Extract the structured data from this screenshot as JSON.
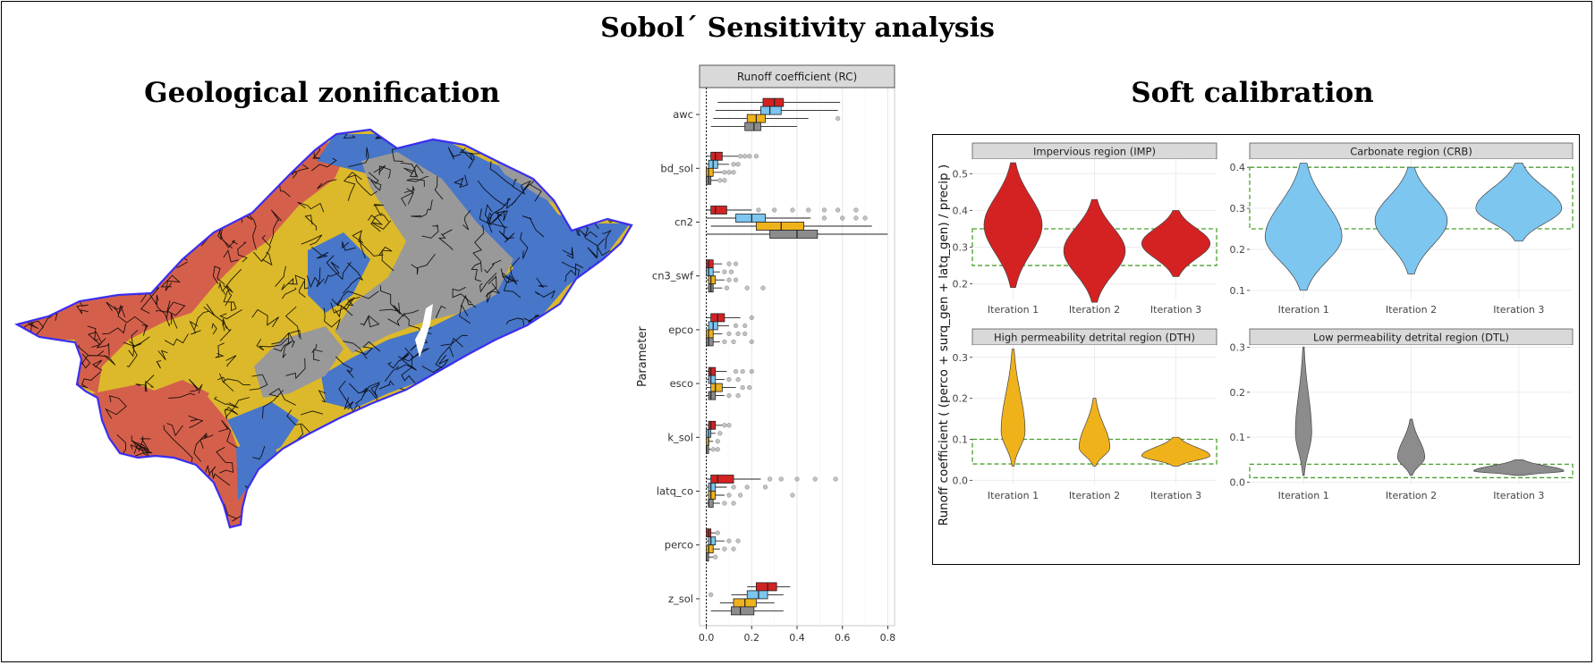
{
  "titles": {
    "main": "Sobol´ Sensitivity analysis",
    "geology": "Geological zonification",
    "soft": "Soft calibration"
  },
  "colors": {
    "impervious": "#d42222",
    "carbonate": "#7cc6f0",
    "high_perm": "#efb21b",
    "low_perm": "#8c8c8c",
    "map_red": "#d4604c",
    "map_yellow": "#dcb92a",
    "map_blue": "#4876c8",
    "map_gray": "#999999",
    "map_outline": "#3a2ef0",
    "target_band": "#4aa02c"
  },
  "map_icon": "watershed-zonification-map",
  "chart_data": [
    {
      "type": "boxplot",
      "panel_title": "Runoff coefficient (RC)",
      "ylabel": "Parameter",
      "xlim": [
        -0.03,
        0.83
      ],
      "x_ticks": [
        "0.0",
        "0.2",
        "0.4",
        "0.6",
        "0.8"
      ],
      "x_tick_values": [
        0,
        0.2,
        0.4,
        0.6,
        0.8
      ],
      "zero_line": true,
      "groups_order": [
        "impervious",
        "carbonate",
        "high_perm",
        "low_perm"
      ],
      "parameters": [
        {
          "name": "awc",
          "boxes": [
            [
              0.05,
              0.25,
              0.3,
              0.34,
              0.59
            ],
            [
              0.04,
              0.24,
              0.28,
              0.33,
              0.58
            ],
            [
              0.03,
              0.18,
              0.22,
              0.26,
              0.45
            ],
            [
              0.02,
              0.17,
              0.21,
              0.24,
              0.4
            ]
          ],
          "outliers": [
            [],
            [],
            [
              0.58
            ],
            []
          ]
        },
        {
          "name": "bd_sol",
          "boxes": [
            [
              0,
              0.02,
              0.04,
              0.07,
              0.14
            ],
            [
              0,
              0.01,
              0.03,
              0.05,
              0.1
            ],
            [
              0,
              0.0,
              0.01,
              0.03,
              0.07
            ],
            [
              0,
              0.0,
              0.01,
              0.02,
              0.05
            ]
          ],
          "outliers": [
            [
              0.15,
              0.17,
              0.19,
              0.22
            ],
            [
              0.12,
              0.14
            ],
            [
              0.08,
              0.1,
              0.12
            ],
            [
              0.06,
              0.08
            ]
          ]
        },
        {
          "name": "cn2",
          "boxes": [
            [
              0,
              0.02,
              0.04,
              0.09,
              0.2
            ],
            [
              0,
              0.13,
              0.2,
              0.26,
              0.46
            ],
            [
              0.02,
              0.22,
              0.33,
              0.43,
              0.73
            ],
            [
              0,
              0.28,
              0.4,
              0.49,
              0.8
            ]
          ],
          "outliers": [
            [
              0.23,
              0.3,
              0.38,
              0.45,
              0.52,
              0.58,
              0.66
            ],
            [
              0.52,
              0.6,
              0.66,
              0.7
            ],
            [],
            []
          ]
        },
        {
          "name": "cn3_swf",
          "boxes": [
            [
              0,
              0.0,
              0.01,
              0.03,
              0.07
            ],
            [
              0,
              0.0,
              0.01,
              0.03,
              0.06
            ],
            [
              0,
              0.01,
              0.02,
              0.04,
              0.08
            ],
            [
              0,
              0.01,
              0.02,
              0.03,
              0.07
            ]
          ],
          "outliers": [
            [
              0.1,
              0.13
            ],
            [
              0.08,
              0.11
            ],
            [
              0.1,
              0.13
            ],
            [
              0.09,
              0.18,
              0.25
            ]
          ]
        },
        {
          "name": "epco",
          "boxes": [
            [
              0,
              0.02,
              0.05,
              0.08,
              0.15
            ],
            [
              0,
              0.01,
              0.03,
              0.05,
              0.1
            ],
            [
              0,
              0.0,
              0.01,
              0.03,
              0.07
            ],
            [
              0,
              0.0,
              0.01,
              0.03,
              0.06
            ]
          ],
          "outliers": [
            [
              0.2
            ],
            [
              0.13,
              0.17
            ],
            [
              0.1,
              0.14,
              0.17
            ],
            [
              0.08,
              0.12,
              0.2
            ]
          ]
        },
        {
          "name": "esco",
          "boxes": [
            [
              0,
              0.01,
              0.02,
              0.04,
              0.09
            ],
            [
              0,
              0.01,
              0.02,
              0.04,
              0.08
            ],
            [
              0,
              0.02,
              0.04,
              0.07,
              0.13
            ],
            [
              0,
              0.01,
              0.02,
              0.04,
              0.08
            ]
          ],
          "outliers": [
            [
              0.13,
              0.16,
              0.2
            ],
            [
              0.1,
              0.14
            ],
            [
              0.16,
              0.19
            ],
            [
              0.1,
              0.14
            ]
          ]
        },
        {
          "name": "k_sol",
          "boxes": [
            [
              0,
              0.01,
              0.02,
              0.04,
              0.07
            ],
            [
              0,
              0.0,
              0.01,
              0.02,
              0.04
            ],
            [
              0,
              0.0,
              0.01,
              0.01,
              0.03
            ],
            [
              0,
              0.0,
              0.0,
              0.01,
              0.02
            ]
          ],
          "outliers": [
            [
              0.08,
              0.1
            ],
            [
              0.06
            ],
            [
              0.05
            ],
            [
              0.03,
              0.05
            ]
          ]
        },
        {
          "name": "latq_co",
          "boxes": [
            [
              0,
              0.02,
              0.05,
              0.12,
              0.24
            ],
            [
              0,
              0.01,
              0.02,
              0.04,
              0.09
            ],
            [
              0,
              0.01,
              0.02,
              0.04,
              0.08
            ],
            [
              0,
              0.01,
              0.01,
              0.03,
              0.06
            ]
          ],
          "outliers": [
            [
              0.28,
              0.33,
              0.4,
              0.48,
              0.57
            ],
            [
              0.12,
              0.18,
              0.26
            ],
            [
              0.1,
              0.15,
              0.38
            ],
            [
              0.08,
              0.12
            ]
          ]
        },
        {
          "name": "perco",
          "boxes": [
            [
              0,
              0.0,
              0.01,
              0.02,
              0.04
            ],
            [
              0,
              0.01,
              0.02,
              0.04,
              0.08
            ],
            [
              0,
              0.0,
              0.01,
              0.03,
              0.06
            ],
            [
              0,
              0.0,
              0.0,
              0.01,
              0.03
            ]
          ],
          "outliers": [
            [
              0.05
            ],
            [
              0.1,
              0.14
            ],
            [
              0.08,
              0.12
            ],
            [
              0.04
            ]
          ]
        },
        {
          "name": "z_sol",
          "boxes": [
            [
              0.18,
              0.22,
              0.27,
              0.31,
              0.37
            ],
            [
              0.11,
              0.18,
              0.23,
              0.27,
              0.34
            ],
            [
              0.06,
              0.12,
              0.17,
              0.22,
              0.3
            ],
            [
              0.02,
              0.11,
              0.15,
              0.21,
              0.34
            ]
          ],
          "outliers": [
            [],
            [
              0.02
            ],
            [],
            []
          ]
        }
      ]
    },
    {
      "type": "violin",
      "ylabel": "Runoff coefficient ( (perco + surq_gen + latq_gen) / precip )",
      "x_categories": [
        "Iteration 1",
        "Iteration 2",
        "Iteration 3"
      ],
      "panels": [
        {
          "title": "Impervious region (IMP)",
          "group": "impervious",
          "ylim": [
            0.16,
            0.54
          ],
          "y_ticks": [
            "0.2",
            "0.3",
            "0.4",
            "0.5"
          ],
          "y_tick_values": [
            0.2,
            0.3,
            0.4,
            0.5
          ],
          "target": [
            0.25,
            0.35
          ],
          "violins": [
            {
              "min": 0.19,
              "max": 0.53,
              "mode": 0.36,
              "width": 0.85
            },
            {
              "min": 0.15,
              "max": 0.43,
              "mode": 0.29,
              "width": 0.9
            },
            {
              "min": 0.22,
              "max": 0.4,
              "mode": 0.31,
              "width": 1.0
            }
          ]
        },
        {
          "title": "Carbonate region (CRB)",
          "group": "carbonate",
          "ylim": [
            0.08,
            0.42
          ],
          "y_ticks": [
            "0.1",
            "0.2",
            "0.3",
            "0.4"
          ],
          "y_tick_values": [
            0.1,
            0.2,
            0.3,
            0.4
          ],
          "target": [
            0.25,
            0.4
          ],
          "violins": [
            {
              "min": 0.1,
              "max": 0.41,
              "mode": 0.23,
              "width": 0.85
            },
            {
              "min": 0.14,
              "max": 0.4,
              "mode": 0.27,
              "width": 0.8
            },
            {
              "min": 0.22,
              "max": 0.41,
              "mode": 0.3,
              "width": 0.95
            }
          ]
        },
        {
          "title": "High permeability detrital region (DTH)",
          "group": "high_perm",
          "ylim": [
            -0.01,
            0.33
          ],
          "y_ticks": [
            "0.0",
            "0.1",
            "0.2",
            "0.3"
          ],
          "y_tick_values": [
            0,
            0.1,
            0.2,
            0.3
          ],
          "target": [
            0.04,
            0.1
          ],
          "violins": [
            {
              "min": 0.035,
              "max": 0.32,
              "mode": 0.12,
              "width": 0.35
            },
            {
              "min": 0.035,
              "max": 0.2,
              "mode": 0.08,
              "width": 0.45
            },
            {
              "min": 0.035,
              "max": 0.105,
              "mode": 0.06,
              "width": 1.0
            }
          ]
        },
        {
          "title": "Low permeability detrital region (DTL)",
          "group": "low_perm",
          "ylim": [
            -0.005,
            0.305
          ],
          "y_ticks": [
            "0.0",
            "0.1",
            "0.2",
            "0.3"
          ],
          "y_tick_values": [
            0,
            0.1,
            0.2,
            0.3
          ],
          "target": [
            0.01,
            0.04
          ],
          "violins": [
            {
              "min": 0.015,
              "max": 0.3,
              "mode": 0.11,
              "width": 0.18
            },
            {
              "min": 0.015,
              "max": 0.14,
              "mode": 0.055,
              "width": 0.3
            },
            {
              "min": 0.015,
              "max": 0.05,
              "mode": 0.025,
              "width": 1.0
            }
          ]
        }
      ]
    }
  ]
}
